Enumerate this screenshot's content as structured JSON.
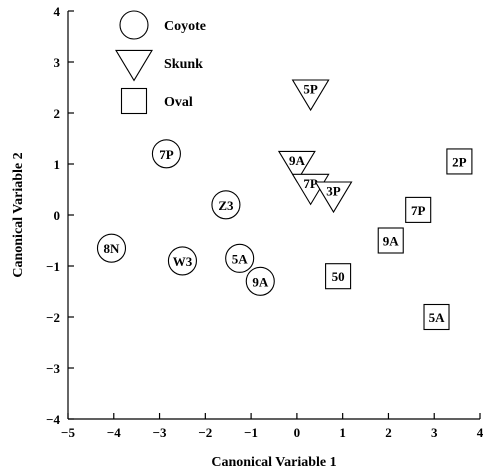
{
  "chart_data": {
    "type": "scatter",
    "title": "",
    "xlabel": "Canonical Variable 1",
    "ylabel": "Canonical Variable 2",
    "xlim": [
      -5,
      4
    ],
    "ylim": [
      -4,
      4
    ],
    "xticks": [
      -5,
      -4,
      -3,
      -2,
      -1,
      0,
      1,
      2,
      3,
      4
    ],
    "yticks": [
      -4,
      -3,
      -2,
      -1,
      0,
      1,
      2,
      3,
      4
    ],
    "grid": false,
    "legend_position": "top-left",
    "series": [
      {
        "name": "Coyote",
        "marker": "circle",
        "points": [
          {
            "label": "7P",
            "x": -2.85,
            "y": 1.2
          },
          {
            "label": "Z3",
            "x": -1.55,
            "y": 0.2
          },
          {
            "label": "8N",
            "x": -4.05,
            "y": -0.65
          },
          {
            "label": "W3",
            "x": -2.5,
            "y": -0.9
          },
          {
            "label": "5A",
            "x": -1.25,
            "y": -0.85
          },
          {
            "label": "9A",
            "x": -0.8,
            "y": -1.3
          }
        ]
      },
      {
        "name": "Skunk",
        "marker": "triangle-down",
        "points": [
          {
            "label": "5P",
            "x": 0.3,
            "y": 2.4
          },
          {
            "label": "9A",
            "x": 0.0,
            "y": 1.0
          },
          {
            "label": "7P",
            "x": 0.3,
            "y": 0.55
          },
          {
            "label": "3P",
            "x": 0.8,
            "y": 0.4
          }
        ]
      },
      {
        "name": "Oval",
        "marker": "square",
        "points": [
          {
            "label": "2P",
            "x": 3.55,
            "y": 1.05
          },
          {
            "label": "7P",
            "x": 2.65,
            "y": 0.1
          },
          {
            "label": "9A",
            "x": 2.05,
            "y": -0.5
          },
          {
            "label": "50",
            "x": 0.9,
            "y": -1.2
          },
          {
            "label": "5A",
            "x": 3.05,
            "y": -2.0
          }
        ]
      }
    ]
  }
}
